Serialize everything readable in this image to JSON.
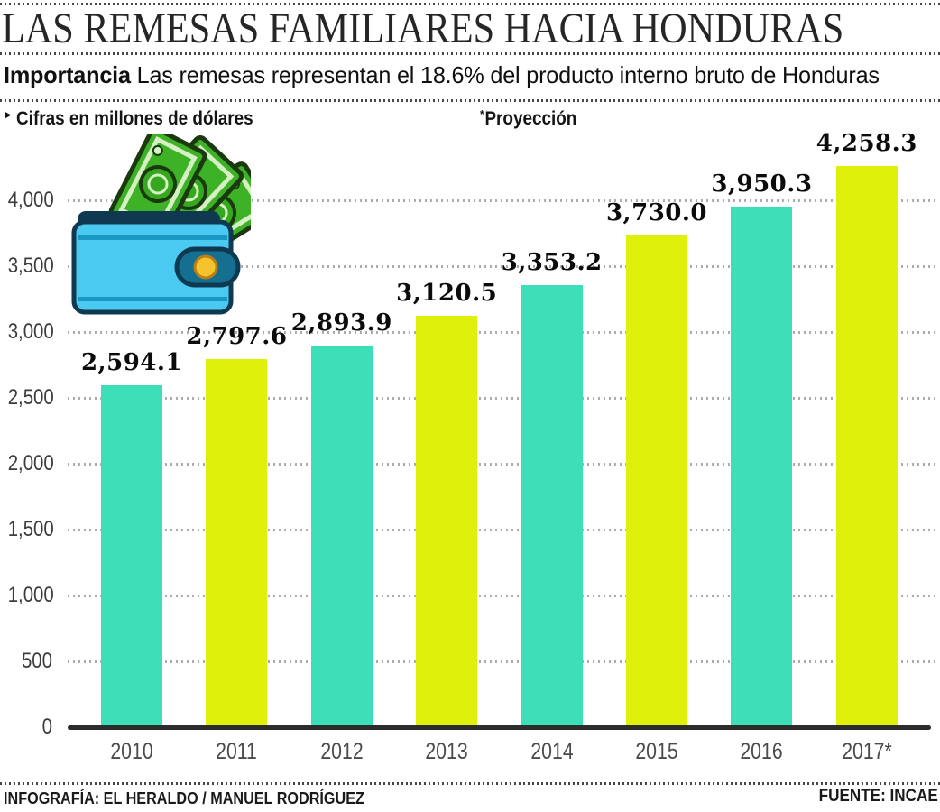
{
  "header": {
    "title": "LAS REMESAS FAMILIARES HACIA HONDURAS",
    "kicker": "Importancia",
    "subtitle": "Las remesas representan el 18.6% del producto interno bruto de Honduras"
  },
  "notes": {
    "unit_marker": "▸",
    "unit_note": "Cifras en millones de dólares",
    "projection_marker": "*",
    "projection_note": "Proyección"
  },
  "chart_data": {
    "type": "bar",
    "title": "Las remesas familiares hacia Honduras",
    "categories": [
      "2010",
      "2011",
      "2012",
      "2013",
      "2014",
      "2015",
      "2016",
      "2017*"
    ],
    "values": [
      2594.1,
      2797.6,
      2893.9,
      3120.5,
      3353.2,
      3730.0,
      3950.3,
      4258.3
    ],
    "value_labels": [
      "2,594.1",
      "2,797.6",
      "2,893.9",
      "3,120.5",
      "3,353.2",
      "3,730.0",
      "3,950.3",
      "4,258.3"
    ],
    "y_ticks": [
      {
        "label": "4,000",
        "value": 4000
      },
      {
        "label": "3,500",
        "value": 3500
      },
      {
        "label": "3,000",
        "value": 3000
      },
      {
        "label": "2,500",
        "value": 2500
      },
      {
        "label": "2,000",
        "value": 2000
      },
      {
        "label": "1,500",
        "value": 1500
      },
      {
        "label": "1,000",
        "value": 1000
      },
      {
        "label": "500",
        "value": 500
      },
      {
        "label": "0",
        "value": 0
      }
    ],
    "ylim": [
      0,
      4300
    ],
    "xlabel": "",
    "ylabel": "Cifras en millones de dólares",
    "grid": "dotted-horizontal",
    "legend": "none"
  },
  "footer": {
    "credit": "INFOGRAFÍA: EL HERALDO / MANUEL RODRÍGUEZ",
    "source": "FUENTE: INCAE"
  },
  "icons": {
    "wallet": "wallet-with-dollar-bills-icon"
  },
  "colors": {
    "bar_teal": "#3DDFB9",
    "bar_yellow": "#DFF00A",
    "grid_dots": "#ACACAC",
    "axis": "#2C2C2C",
    "wallet_body": "#4AC9F1",
    "wallet_dark": "#0E3950",
    "wallet_clasp": "#156F90",
    "button_gold": "#F5C42C",
    "bill_green": "#3DB227",
    "bill_dark": "#1A3A0E",
    "bill_pale": "#D6F0C4"
  }
}
